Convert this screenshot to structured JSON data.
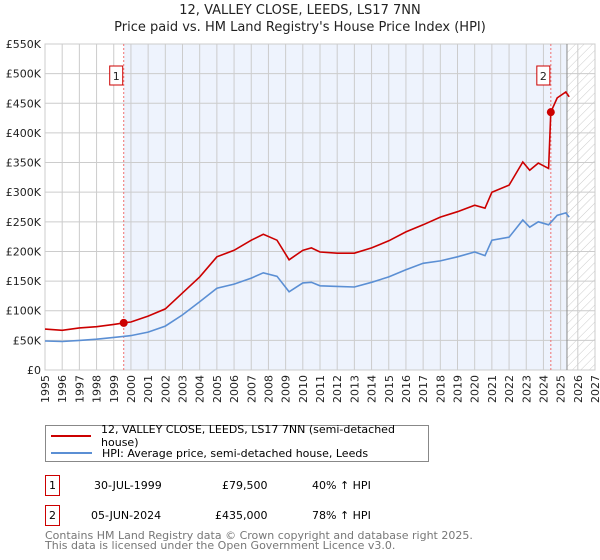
{
  "title": "12, VALLEY CLOSE, LEEDS, LS17 7NN",
  "subtitle": "Price paid vs. HM Land Registry's House Price Index (HPI)",
  "chart_data": {
    "type": "line",
    "title": "12, VALLEY CLOSE, LEEDS, LS17 7NN — Price paid vs. HM Land Registry's House Price Index (HPI)",
    "xlim": [
      1995,
      2027
    ],
    "ylim": [
      0,
      550000
    ],
    "grid": true,
    "x_ticks": [
      "1995",
      "1996",
      "1997",
      "1998",
      "1999",
      "2000",
      "2001",
      "2002",
      "2003",
      "2004",
      "2005",
      "2006",
      "2007",
      "2008",
      "2009",
      "2010",
      "2011",
      "2012",
      "2013",
      "2014",
      "2015",
      "2016",
      "2017",
      "2018",
      "2019",
      "2020",
      "2021",
      "2022",
      "2023",
      "2024",
      "2025",
      "2026",
      "2027"
    ],
    "y_ticks": [
      {
        "value": 0,
        "label": "£0"
      },
      {
        "value": 50000,
        "label": "£50K"
      },
      {
        "value": 100000,
        "label": "£100K"
      },
      {
        "value": 150000,
        "label": "£150K"
      },
      {
        "value": 200000,
        "label": "£200K"
      },
      {
        "value": 250000,
        "label": "£250K"
      },
      {
        "value": 300000,
        "label": "£300K"
      },
      {
        "value": 350000,
        "label": "£350K"
      },
      {
        "value": 400000,
        "label": "£400K"
      },
      {
        "value": 450000,
        "label": "£450K"
      },
      {
        "value": 500000,
        "label": "£500K"
      },
      {
        "value": 550000,
        "label": "£550K"
      }
    ],
    "projection_start": 2025.37,
    "legend_position": "below",
    "series": [
      {
        "name": "12, VALLEY CLOSE, LEEDS, LS17 7NN (semi-detached house)",
        "color": "#cc0000",
        "x": [
          1995,
          1996,
          1997,
          1998,
          1999,
          1999.58,
          2000,
          2001,
          2002,
          2003,
          2004,
          2005,
          2006,
          2007,
          2007.7,
          2008.5,
          2009.2,
          2010,
          2010.5,
          2011,
          2012,
          2013,
          2014,
          2015,
          2016,
          2017,
          2018,
          2019,
          2020,
          2020.6,
          2021,
          2022,
          2022.8,
          2023.2,
          2023.7,
          2024.3,
          2024.43,
          2024.8,
          2025.3,
          2025.5
        ],
        "y": [
          69000,
          67000,
          71000,
          73000,
          77000,
          79500,
          81000,
          91000,
          103000,
          130000,
          157000,
          191000,
          202000,
          219000,
          229000,
          219000,
          186000,
          202000,
          206000,
          199000,
          197000,
          197000,
          206000,
          218000,
          233000,
          245000,
          258000,
          267000,
          278000,
          273000,
          300000,
          312000,
          351000,
          337000,
          349000,
          340000,
          435000,
          459000,
          469000,
          461000
        ]
      },
      {
        "name": "HPI: Average price, semi-detached house, Leeds",
        "color": "#5b8fd4",
        "x": [
          1995,
          1996,
          1997,
          1998,
          1999,
          2000,
          2001,
          2002,
          2003,
          2004,
          2005,
          2006,
          2007,
          2007.7,
          2008.5,
          2009.2,
          2010,
          2010.5,
          2011,
          2012,
          2013,
          2014,
          2015,
          2016,
          2017,
          2018,
          2019,
          2020,
          2020.6,
          2021,
          2022,
          2022.8,
          2023.2,
          2023.7,
          2024.3,
          2024.8,
          2025.3,
          2025.5
        ],
        "y": [
          49000,
          48000,
          50000,
          52000,
          55000,
          58000,
          64000,
          74000,
          93000,
          115000,
          138000,
          145000,
          155000,
          164000,
          158000,
          132000,
          147000,
          148000,
          142000,
          141000,
          140000,
          148000,
          157000,
          169000,
          180000,
          184000,
          191000,
          199000,
          193000,
          219000,
          224000,
          253000,
          241000,
          250000,
          245000,
          261000,
          265000,
          258000
        ]
      }
    ],
    "annotations": [
      {
        "label": "1",
        "x": 1999.58,
        "y": 79500
      },
      {
        "label": "2",
        "x": 2024.43,
        "y": 435000
      }
    ]
  },
  "legend": [
    {
      "label": "12, VALLEY CLOSE, LEEDS, LS17 7NN (semi-detached house)",
      "color": "#cc0000"
    },
    {
      "label": "HPI: Average price, semi-detached house, Leeds",
      "color": "#5b8fd4"
    }
  ],
  "transactions": [
    {
      "num": "1",
      "date": "30-JUL-1999",
      "price": "£79,500",
      "hpi": "40% ↑ HPI"
    },
    {
      "num": "2",
      "date": "05-JUN-2024",
      "price": "£435,000",
      "hpi": "78% ↑ HPI"
    }
  ],
  "footer": {
    "line1": "Contains HM Land Registry data © Crown copyright and database right 2025.",
    "line2": "This data is licensed under the Open Government Licence v3.0."
  }
}
